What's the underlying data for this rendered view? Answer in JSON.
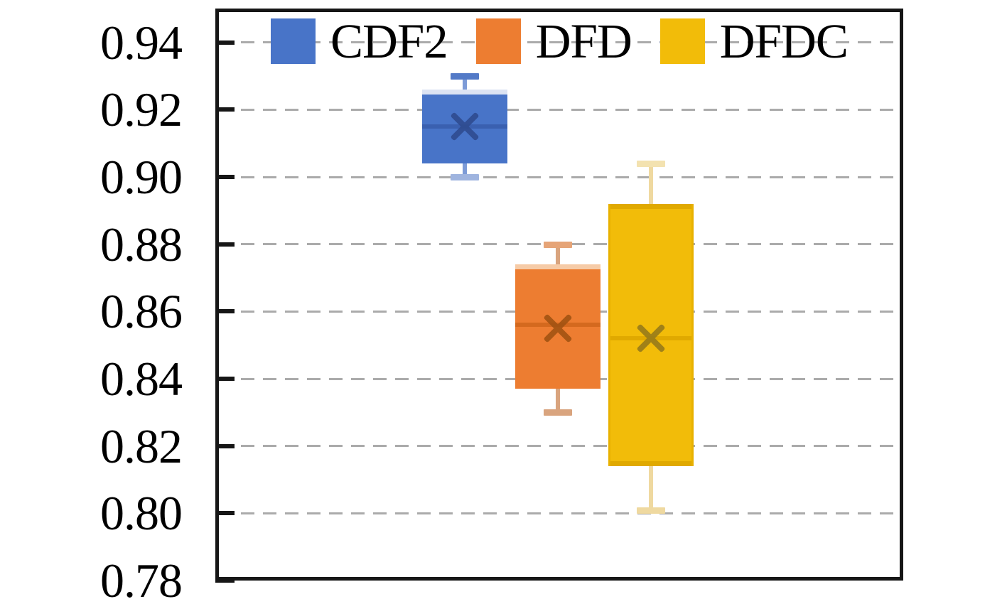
{
  "figure": {
    "background": "#ffffff",
    "axis_color": "#161616",
    "grid_color": "#ababab",
    "label_color": "#000000"
  },
  "chart_data": {
    "type": "box",
    "title": "",
    "xlabel": "",
    "ylabel": "",
    "ylim": [
      0.78,
      0.9501
    ],
    "grid": "dashed-horizontal",
    "legend_position": "top-inside",
    "yticks": [
      {
        "v": 0.94,
        "label": "0.94"
      },
      {
        "v": 0.92,
        "label": "0.92"
      },
      {
        "v": 0.9,
        "label": "0.90"
      },
      {
        "v": 0.88,
        "label": "0.88"
      },
      {
        "v": 0.86,
        "label": "0.86"
      },
      {
        "v": 0.84,
        "label": "0.84"
      },
      {
        "v": 0.82,
        "label": "0.82"
      },
      {
        "v": 0.8,
        "label": "0.80"
      },
      {
        "v": 0.78,
        "label": "0.78"
      }
    ],
    "gridline_values": [
      0.94,
      0.92,
      0.9,
      0.88,
      0.86,
      0.84,
      0.82,
      0.8
    ],
    "box_width_frac": 0.124,
    "cap_width_frac": 0.041,
    "series": [
      {
        "name": "CDF2",
        "x_frac": 0.3626,
        "values": {
          "whisker_low": 0.9,
          "q1": 0.904,
          "median": 0.915,
          "q3": 0.926,
          "whisker_high": 0.93,
          "mean": 0.915
        },
        "colors": {
          "fill": "#4874C8",
          "edge_top": "#DCE3F3",
          "edge_bottom": null,
          "edge_side": null,
          "median": "#3A60B0",
          "mean": "#2E4B8F",
          "stem": "#7D9BD7",
          "cap_top": "#537AC7",
          "cap_bottom": "#9FB4DF"
        }
      },
      {
        "name": "DFD",
        "x_frac": 0.4979,
        "values": {
          "whisker_low": 0.83,
          "q1": 0.837,
          "median": 0.856,
          "q3": 0.874,
          "whisker_high": 0.88,
          "mean": 0.855
        },
        "colors": {
          "fill": "#ED7D31",
          "edge_top": "#F6CBA7",
          "edge_bottom": null,
          "edge_side": null,
          "median": "#D4691E",
          "mean": "#A05212",
          "stem": "#D9A47E",
          "cap_top": "#E6A477",
          "cap_bottom": "#D9A47E"
        }
      },
      {
        "name": "DFDC",
        "x_frac": 0.6332,
        "values": {
          "whisker_low": 0.801,
          "q1": 0.814,
          "median": 0.852,
          "q3": 0.892,
          "whisker_high": 0.904,
          "mean": 0.852
        },
        "colors": {
          "fill": "#F2BC09",
          "edge_top": "#E0A900",
          "edge_bottom": "#E0A900",
          "edge_side": "#E8B100",
          "median": "#E0A900",
          "mean": "#957A1B",
          "stem": "#EFD9A0",
          "cap_top": "#F3E2B0",
          "cap_bottom": "#EFD9A0"
        }
      }
    ]
  }
}
